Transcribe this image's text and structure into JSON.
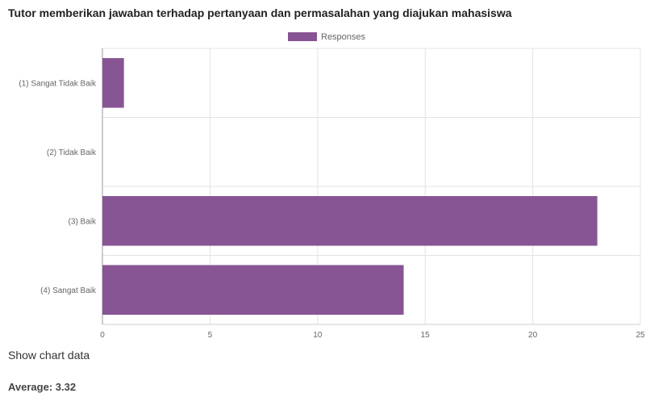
{
  "chart_data": {
    "type": "bar",
    "orientation": "horizontal",
    "title": "Tutor memberikan jawaban terhadap pertanyaan dan permasalahan yang diajukan mahasiswa",
    "categories": [
      "(1) Sangat Tidak Baik",
      "(2) Tidak Baik",
      "(3) Baik",
      "(4) Sangat Baik"
    ],
    "series": [
      {
        "name": "Responses",
        "values": [
          1,
          0,
          23,
          14
        ],
        "color": "#875594"
      }
    ],
    "xlim": [
      0,
      25
    ],
    "xticks": [
      0,
      5,
      10,
      15,
      20,
      25
    ],
    "grid": true,
    "legend_position": "top-center"
  },
  "footer": {
    "show_data_label": "Show chart data",
    "average_label": "Average: 3.32"
  }
}
